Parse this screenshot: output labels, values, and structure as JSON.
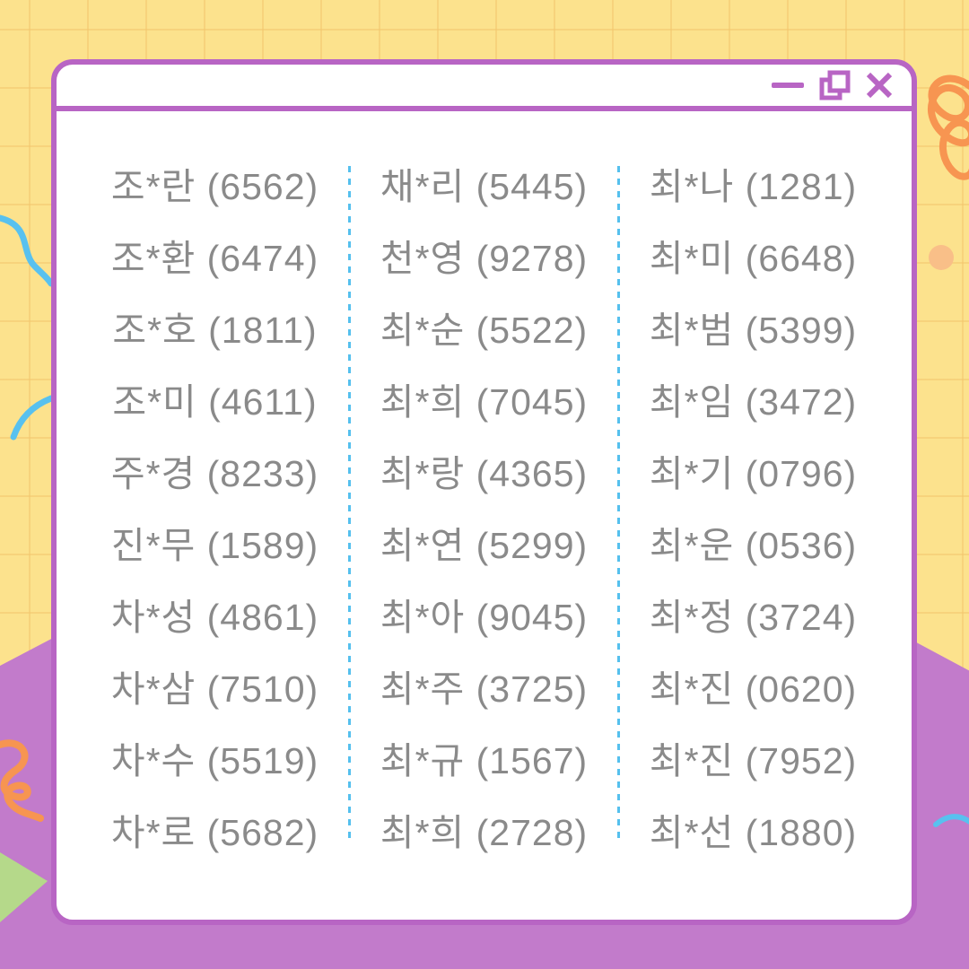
{
  "window": {
    "titlebar": {
      "minimize_label": "minimize",
      "maximize_label": "maximize",
      "close_label": "close"
    },
    "entry_format": "{name} ({number})",
    "columns": [
      {
        "entries": [
          {
            "name": "조*란",
            "number": "6562"
          },
          {
            "name": "조*환",
            "number": "6474"
          },
          {
            "name": "조*호",
            "number": "1811"
          },
          {
            "name": "조*미",
            "number": "4611"
          },
          {
            "name": "주*경",
            "number": "8233"
          },
          {
            "name": "진*무",
            "number": "1589"
          },
          {
            "name": "차*성",
            "number": "4861"
          },
          {
            "name": "차*삼",
            "number": "7510"
          },
          {
            "name": "차*수",
            "number": "5519"
          },
          {
            "name": "차*로",
            "number": "5682"
          }
        ]
      },
      {
        "entries": [
          {
            "name": "채*리",
            "number": "5445"
          },
          {
            "name": "천*영",
            "number": "9278"
          },
          {
            "name": "최*순",
            "number": "5522"
          },
          {
            "name": "최*희",
            "number": "7045"
          },
          {
            "name": "최*랑",
            "number": "4365"
          },
          {
            "name": "최*연",
            "number": "5299"
          },
          {
            "name": "최*아",
            "number": "9045"
          },
          {
            "name": "최*주",
            "number": "3725"
          },
          {
            "name": "최*규",
            "number": "1567"
          },
          {
            "name": "최*희",
            "number": "2728"
          }
        ]
      },
      {
        "entries": [
          {
            "name": "최*나",
            "number": "1281"
          },
          {
            "name": "최*미",
            "number": "6648"
          },
          {
            "name": "최*범",
            "number": "5399"
          },
          {
            "name": "최*임",
            "number": "3472"
          },
          {
            "name": "최*기",
            "number": "0796"
          },
          {
            "name": "최*운",
            "number": "0536"
          },
          {
            "name": "최*정",
            "number": "3724"
          },
          {
            "name": "최*진",
            "number": "0620"
          },
          {
            "name": "최*진",
            "number": "7952"
          },
          {
            "name": "최*선",
            "number": "1880"
          }
        ]
      }
    ]
  },
  "decorations": {
    "icons": [
      "blue-squiggle-icon",
      "orange-squiggle-icon",
      "orange-scribble-icon",
      "orange-dot-icon",
      "green-triangle-icon"
    ]
  },
  "colors": {
    "background_yellow": "#fce28d",
    "grid_line": "#f2c66e",
    "hill_purple": "#c27bcb",
    "window_border_purple": "#b865c4",
    "window_bg": "#ffffff",
    "entry_text": "#8a8a8a",
    "divider_blue": "#55c0ee",
    "squiggle_blue": "#58c1ef",
    "squiggle_orange": "#f79551",
    "dot_orange": "#f9bf88",
    "triangle_green": "#b5d98a"
  }
}
